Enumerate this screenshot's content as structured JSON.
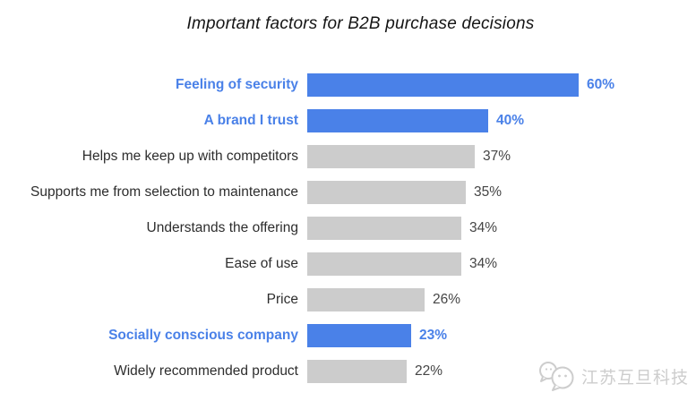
{
  "title": "Important factors for B2B purchase decisions",
  "chart_data": {
    "type": "bar",
    "orientation": "horizontal",
    "title": "Important factors for B2B purchase decisions",
    "categories": [
      "Feeling of security",
      "A brand I trust",
      "Helps me keep up with competitors",
      "Supports me from selection to maintenance",
      "Understands the offering",
      "Ease of use",
      "Price",
      "Socially conscious company",
      "Widely recommended product"
    ],
    "values": [
      60,
      40,
      37,
      35,
      34,
      34,
      26,
      23,
      22
    ],
    "value_labels": [
      "60%",
      "40%",
      "37%",
      "35%",
      "34%",
      "34%",
      "26%",
      "23%",
      "22%"
    ],
    "highlighted": [
      true,
      true,
      false,
      false,
      false,
      false,
      false,
      true,
      false
    ],
    "highlight_color": "#4a81e8",
    "bar_color": "#cccccc",
    "xlim": [
      0,
      65
    ],
    "grid": false,
    "legend": false,
    "axes_shown": false
  },
  "watermark": {
    "text": "江苏互旦科技",
    "icon": "chat-bubbles-icon",
    "color": "#cdcdcd"
  }
}
